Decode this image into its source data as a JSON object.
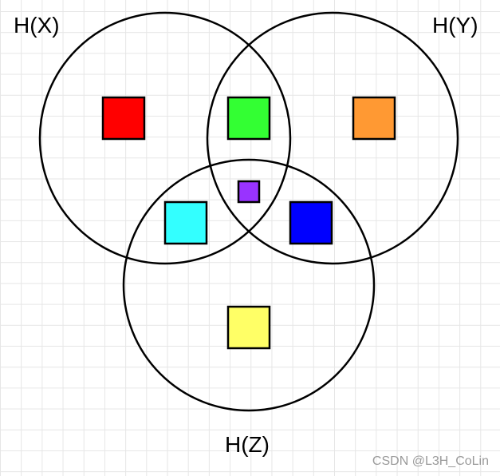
{
  "diagram": {
    "labels": {
      "hx": "H(X)",
      "hy": "H(Y)",
      "hz": "H(Z)"
    },
    "regions": [
      {
        "name": "x-only",
        "color": "#ff0000"
      },
      {
        "name": "x-and-y",
        "color": "#33ff33"
      },
      {
        "name": "y-only",
        "color": "#ff9933"
      },
      {
        "name": "x-y-z",
        "color": "#9933ff"
      },
      {
        "name": "x-and-z",
        "color": "#33ffff"
      },
      {
        "name": "y-and-z",
        "color": "#0000ff"
      },
      {
        "name": "z-only",
        "color": "#ffff66"
      }
    ]
  },
  "watermark": "CSDN @L3H_CoLin"
}
